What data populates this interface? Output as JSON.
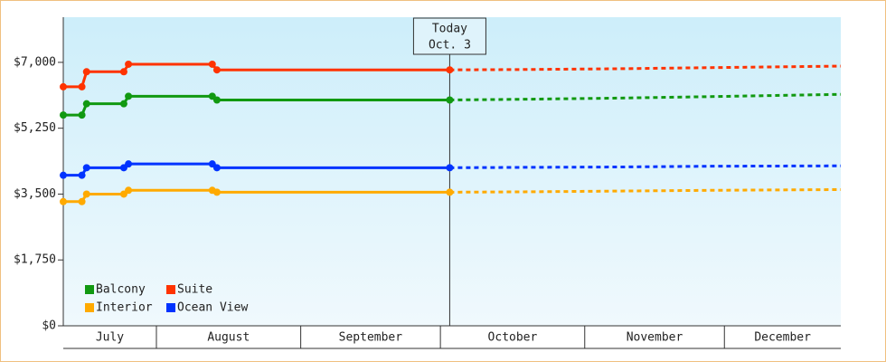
{
  "chart_data": {
    "type": "line",
    "xlim": [
      11,
      178
    ],
    "xticks": [
      {
        "value": 11,
        "label": "July"
      },
      {
        "value": 31,
        "label": "August"
      },
      {
        "value": 62,
        "label": "September"
      },
      {
        "value": 92,
        "label": "October"
      },
      {
        "value": 123,
        "label": "November"
      },
      {
        "value": 153,
        "label": "December"
      }
    ],
    "ylim": [
      0,
      8200
    ],
    "yticks": [
      {
        "value": 0,
        "label": "$0"
      },
      {
        "value": 1750,
        "label": "$1,750"
      },
      {
        "value": 3500,
        "label": "$3,500"
      },
      {
        "value": 5250,
        "label": "$5,250"
      },
      {
        "value": 7000,
        "label": "$7,000"
      }
    ],
    "annotation": {
      "x": 94,
      "lines": [
        "Today",
        "Oct. 3"
      ]
    },
    "x": [
      11,
      15,
      16,
      24,
      25,
      43,
      44,
      94,
      110,
      130,
      150,
      178
    ],
    "series": [
      {
        "name": "Balcony",
        "color": "#119911",
        "values": [
          5600,
          5600,
          5900,
          5900,
          6100,
          6100,
          6000,
          6000,
          6020,
          6050,
          6090,
          6150
        ]
      },
      {
        "name": "Suite",
        "color": "#ff3300",
        "values": [
          6350,
          6350,
          6750,
          6750,
          6950,
          6950,
          6800,
          6800,
          6810,
          6830,
          6860,
          6900
        ]
      },
      {
        "name": "Interior",
        "color": "#ffaa00",
        "values": [
          3300,
          3300,
          3500,
          3500,
          3600,
          3600,
          3550,
          3550,
          3560,
          3580,
          3600,
          3620
        ]
      },
      {
        "name": "Ocean View",
        "color": "#0033ff",
        "values": [
          4000,
          4000,
          4200,
          4200,
          4300,
          4300,
          4200,
          4200,
          4210,
          4220,
          4240,
          4250
        ]
      }
    ]
  }
}
